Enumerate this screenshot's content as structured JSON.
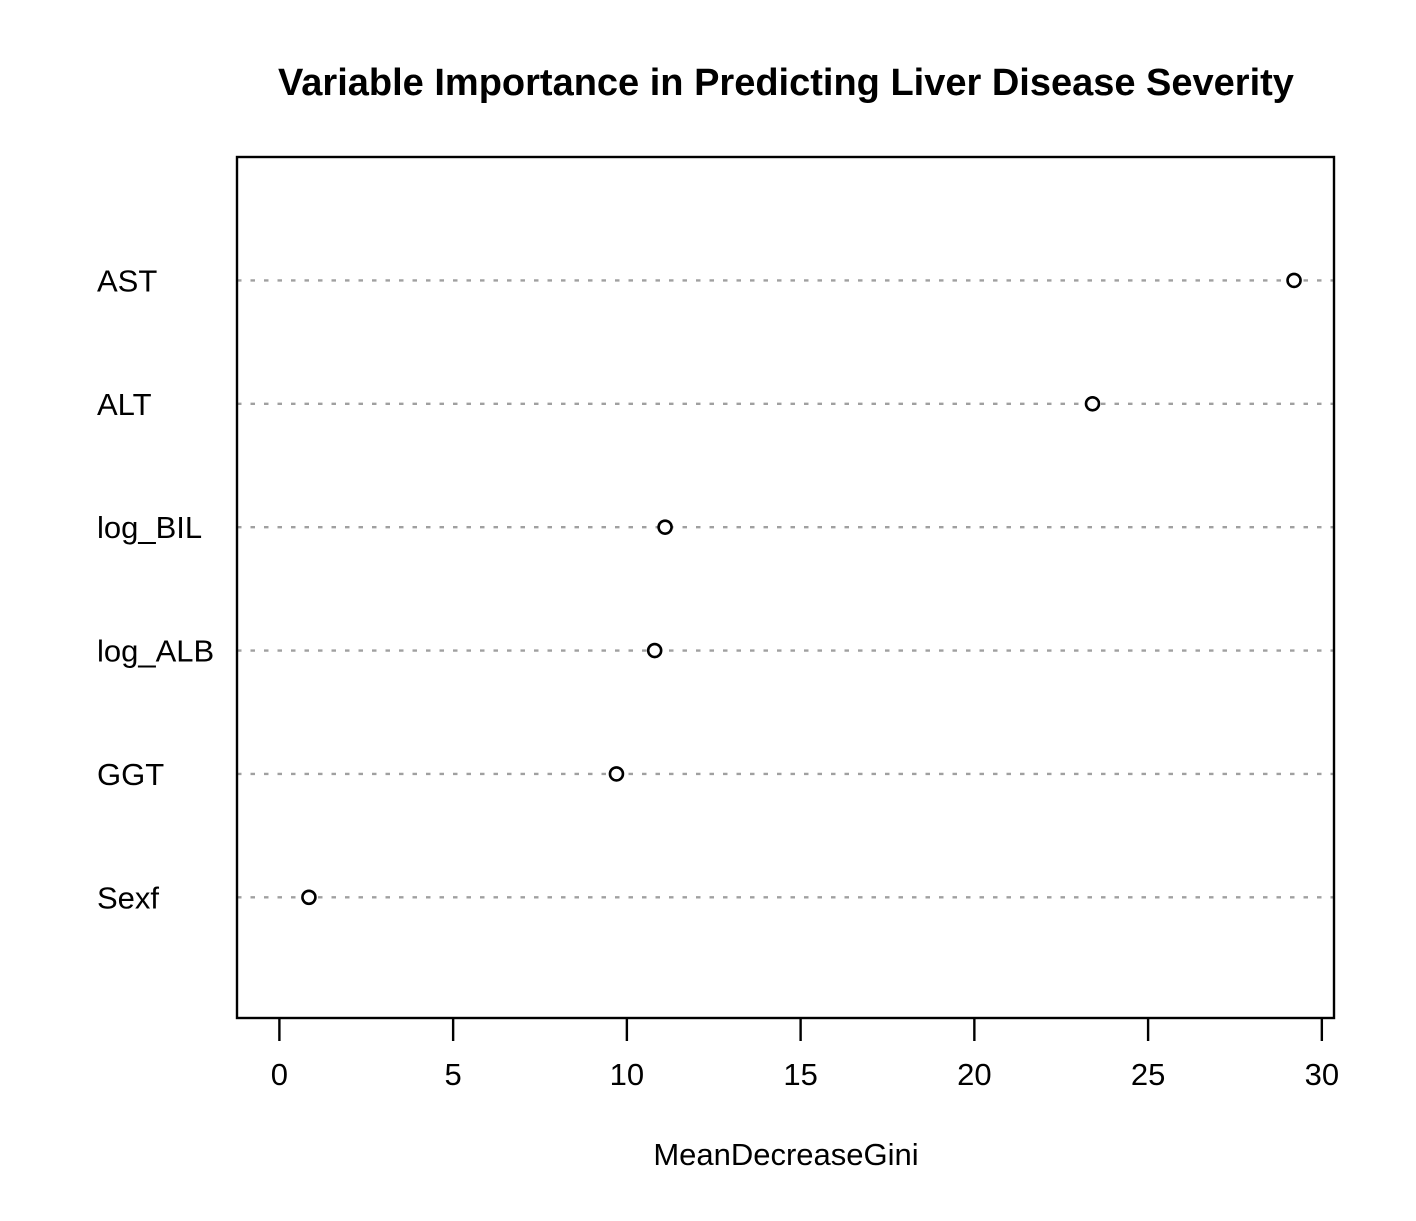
{
  "chart_data": {
    "type": "scatter",
    "variant": "dot-chart",
    "title": "Variable Importance in Predicting Liver Disease Severity",
    "xlabel": "MeanDecreaseGini",
    "ylabel": "",
    "categories": [
      "AST",
      "ALT",
      "log_BIL",
      "log_ALB",
      "GGT",
      "Sexf"
    ],
    "values": [
      29.2,
      23.4,
      11.1,
      10.8,
      9.7,
      0.85
    ],
    "x_ticks": [
      0,
      5,
      10,
      15,
      20,
      25,
      30
    ],
    "xlim": [
      -1.22,
      30.35
    ],
    "grid": "horizontal-dotted",
    "legend": "none",
    "point_style": "open-circle",
    "colors": {
      "point_stroke": "#000000",
      "grid_line": "#a0a0a0",
      "axis": "#000000",
      "text": "#000000",
      "background": "#ffffff"
    }
  }
}
